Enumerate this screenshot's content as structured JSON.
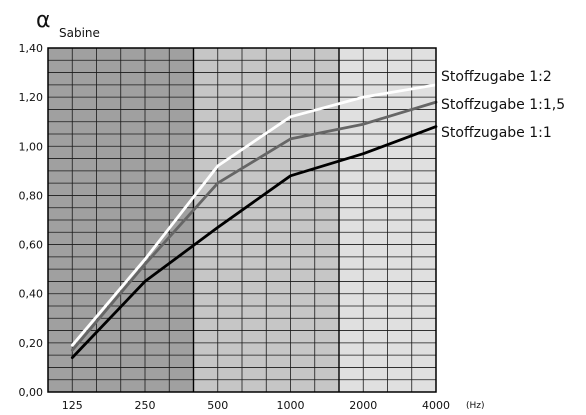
{
  "chart_data": {
    "type": "line",
    "ylabel_symbol": "α",
    "ylabel_sub": "Sabine",
    "x_unit": "(Hz)",
    "categories": [
      "125",
      "250",
      "500",
      "1000",
      "2000",
      "4000"
    ],
    "ylim": [
      0,
      1.4
    ],
    "yticks": [
      "0,00",
      "0,20",
      "0,40",
      "0,60",
      "0,80",
      "1,00",
      "1,20",
      "1,40"
    ],
    "grid": true,
    "bands": [
      "#a0a0a0",
      "#c6c6c6",
      "#e0e0e0"
    ],
    "series": [
      {
        "name": "Stoffzugabe 1:2",
        "color": "#ffffff",
        "values": [
          0.19,
          0.54,
          0.92,
          1.12,
          1.2,
          1.25
        ]
      },
      {
        "name": "Stoffzugabe 1:1,5",
        "color": "#666666",
        "values": [
          0.17,
          0.52,
          0.85,
          1.03,
          1.09,
          1.18
        ]
      },
      {
        "name": "Stoffzugabe 1:1",
        "color": "#000000",
        "values": [
          0.14,
          0.45,
          0.67,
          0.88,
          0.97,
          1.08
        ]
      }
    ]
  }
}
